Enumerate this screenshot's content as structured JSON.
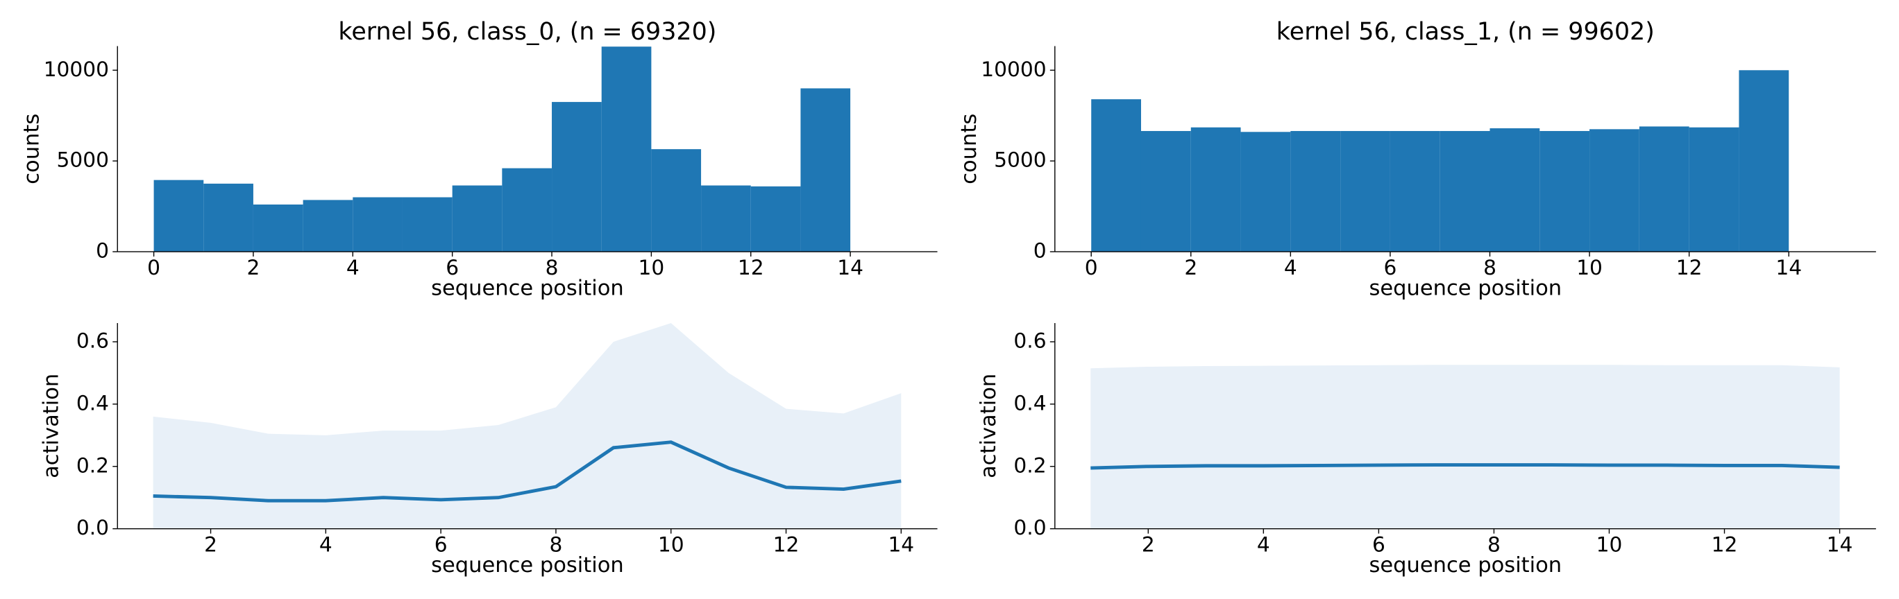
{
  "chart_data": [
    {
      "type": "histogram",
      "title": "kernel 56, class_0, (n = 69320)",
      "x_label": "sequence position",
      "y_label": "counts",
      "bins": [
        0,
        1,
        2,
        3,
        4,
        5,
        6,
        7,
        8,
        9,
        10,
        11,
        12,
        13,
        14
      ],
      "values": [
        3950,
        3750,
        2600,
        2850,
        3000,
        3000,
        3650,
        4600,
        8250,
        11300,
        5650,
        3650,
        3600,
        9000
      ],
      "color": "#1f77b4",
      "xlim": [
        -0.73,
        15.75
      ],
      "xticks": [
        0,
        2,
        4,
        6,
        8,
        10,
        12,
        14
      ],
      "ylim": [
        0,
        11330
      ],
      "yticks": [
        0,
        5000,
        10000
      ]
    },
    {
      "type": "histogram",
      "title": "kernel 56, class_1, (n = 99602)",
      "x_label": "sequence position",
      "y_label": "counts",
      "bins": [
        0,
        1,
        2,
        3,
        4,
        5,
        6,
        7,
        8,
        9,
        10,
        11,
        12,
        13,
        14
      ],
      "values": [
        8400,
        6650,
        6850,
        6600,
        6650,
        6650,
        6650,
        6650,
        6800,
        6650,
        6750,
        6900,
        6850,
        10000
      ],
      "color": "#1f77b4",
      "xlim": [
        -0.73,
        15.75
      ],
      "xticks": [
        0,
        2,
        4,
        6,
        8,
        10,
        12,
        14
      ],
      "ylim": [
        0,
        11330
      ],
      "yticks": [
        0,
        5000,
        10000
      ]
    },
    {
      "type": "line",
      "x_label": "sequence position",
      "y_label": "activation",
      "x": [
        1,
        2,
        3,
        4,
        5,
        6,
        7,
        8,
        9,
        10,
        11,
        12,
        13,
        14
      ],
      "series": [
        {
          "color": "#1f77b4",
          "values": [
            0.105,
            0.1,
            0.09,
            0.09,
            0.1,
            0.093,
            0.1,
            0.135,
            0.26,
            0.278,
            0.195,
            0.133,
            0.127,
            0.153
          ]
        }
      ],
      "band": {
        "color": "#e8f0f8",
        "lower": [
          0,
          0,
          0,
          0,
          0,
          0,
          0,
          0,
          0,
          0,
          0,
          0,
          0,
          0
        ],
        "upper": [
          0.36,
          0.34,
          0.305,
          0.3,
          0.315,
          0.315,
          0.333,
          0.39,
          0.6,
          0.66,
          0.5,
          0.385,
          0.37,
          0.435
        ]
      },
      "xlim": [
        0.38,
        14.63
      ],
      "xticks": [
        2,
        4,
        6,
        8,
        10,
        12,
        14
      ],
      "ylim": [
        0,
        0.66
      ],
      "yticks": [
        {
          "value": 0,
          "label": "0.0"
        },
        0.2,
        0.4,
        0.6
      ]
    },
    {
      "type": "line",
      "x_label": "sequence position",
      "y_label": "activation",
      "x": [
        1,
        2,
        3,
        4,
        5,
        6,
        7,
        8,
        9,
        10,
        11,
        12,
        13,
        14
      ],
      "series": [
        {
          "color": "#1f77b4",
          "values": [
            0.195,
            0.2,
            0.202,
            0.202,
            0.203,
            0.204,
            0.205,
            0.205,
            0.205,
            0.204,
            0.204,
            0.203,
            0.203,
            0.197
          ]
        }
      ],
      "band": {
        "color": "#e8f0f8",
        "lower": [
          0,
          0,
          0,
          0,
          0,
          0,
          0,
          0,
          0,
          0,
          0,
          0,
          0,
          0
        ],
        "upper": [
          0.515,
          0.52,
          0.522,
          0.523,
          0.524,
          0.525,
          0.526,
          0.526,
          0.526,
          0.526,
          0.525,
          0.525,
          0.525,
          0.518
        ]
      },
      "xlim": [
        0.38,
        14.63
      ],
      "xticks": [
        2,
        4,
        6,
        8,
        10,
        12,
        14
      ],
      "ylim": [
        0,
        0.66
      ],
      "yticks": [
        {
          "value": 0,
          "label": "0.0"
        },
        0.2,
        0.4,
        0.6
      ]
    }
  ]
}
